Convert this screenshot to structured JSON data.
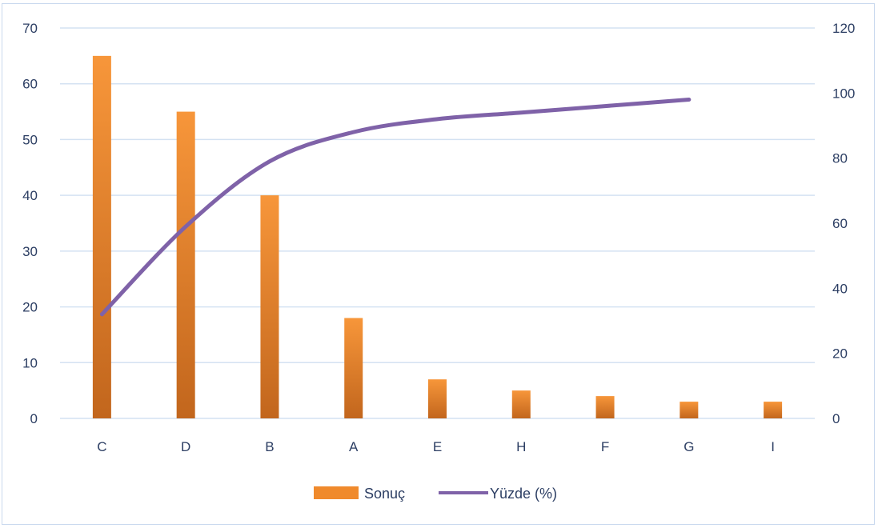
{
  "chart_data": {
    "type": "bar",
    "categories": [
      "C",
      "D",
      "B",
      "A",
      "E",
      "H",
      "F",
      "G",
      "I"
    ],
    "series": [
      {
        "name": "Sonuç",
        "type": "bar",
        "axis": "left",
        "values": [
          65,
          55,
          40,
          18,
          7,
          5,
          4,
          3,
          3
        ]
      },
      {
        "name": "Yüzde (%)",
        "type": "line",
        "axis": "right",
        "values": [
          32,
          59,
          79,
          88,
          92,
          94,
          96,
          98,
          null
        ]
      }
    ],
    "y_left": {
      "min": 0,
      "max": 70,
      "ticks": [
        "0",
        "10",
        "20",
        "30",
        "40",
        "50",
        "60",
        "70"
      ]
    },
    "y_right": {
      "min": 0,
      "max": 120,
      "ticks": [
        "0",
        "20",
        "40",
        "60",
        "80",
        "100",
        "120"
      ]
    },
    "grid": true,
    "legend": "bottom",
    "title": "",
    "xlabel": "",
    "ylabel": "",
    "colors": {
      "bar_top": "#f7963a",
      "bar_bottom": "#c2661d",
      "line": "#7f62a8",
      "grid": "#d4e2f2",
      "text": "#2c3e63",
      "border": "#c9d9ee"
    }
  }
}
